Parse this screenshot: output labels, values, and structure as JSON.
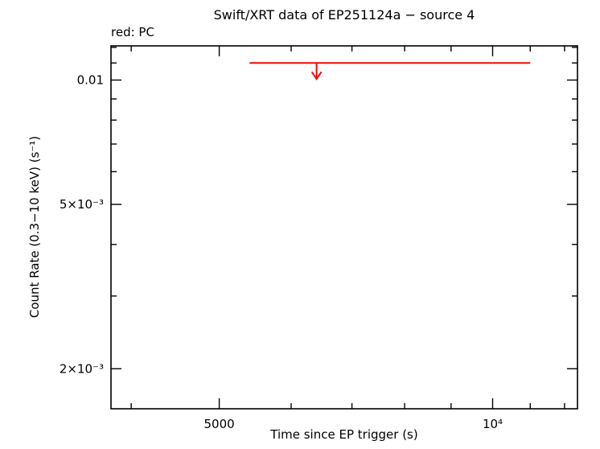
{
  "page": {
    "background": "#ffffff"
  },
  "chart_data": {
    "type": "scatter",
    "title": "Swift/XRT data of EP251124a − source 4",
    "annotation": "red: PC",
    "xlabel": "Time since EP trigger (s)",
    "ylabel": "Count Rate (0.3−10 keV) (s⁻¹)",
    "x_scale": "log",
    "y_scale": "log",
    "xlim": [
      3800,
      12400
    ],
    "ylim": [
      0.0016,
      0.0121
    ],
    "grid": false,
    "frame_color": "#000000",
    "x_ticks": {
      "major": [
        {
          "value": 5000,
          "label": "5000"
        },
        {
          "value": 10000,
          "label": "10⁴"
        }
      ],
      "minor": [
        4000,
        6000,
        7000,
        8000,
        9000,
        11000,
        12000
      ]
    },
    "y_ticks": {
      "major": [
        {
          "value": 0.01,
          "label": "0.01"
        },
        {
          "value": 0.005,
          "label": "5×10⁻³"
        },
        {
          "value": 0.002,
          "label": "2×10⁻³"
        }
      ],
      "minor": [
        0.003,
        0.004,
        0.006,
        0.007,
        0.008,
        0.009,
        0.011,
        0.012
      ]
    },
    "series": [
      {
        "name": "PC",
        "mode": "PC",
        "color": "#ff0000",
        "marker": "upper-limit",
        "points": [
          {
            "time_s": 6400,
            "time_start_s": 5400,
            "time_end_s": 11000,
            "rate_upper_limit": 0.011
          }
        ]
      }
    ]
  }
}
